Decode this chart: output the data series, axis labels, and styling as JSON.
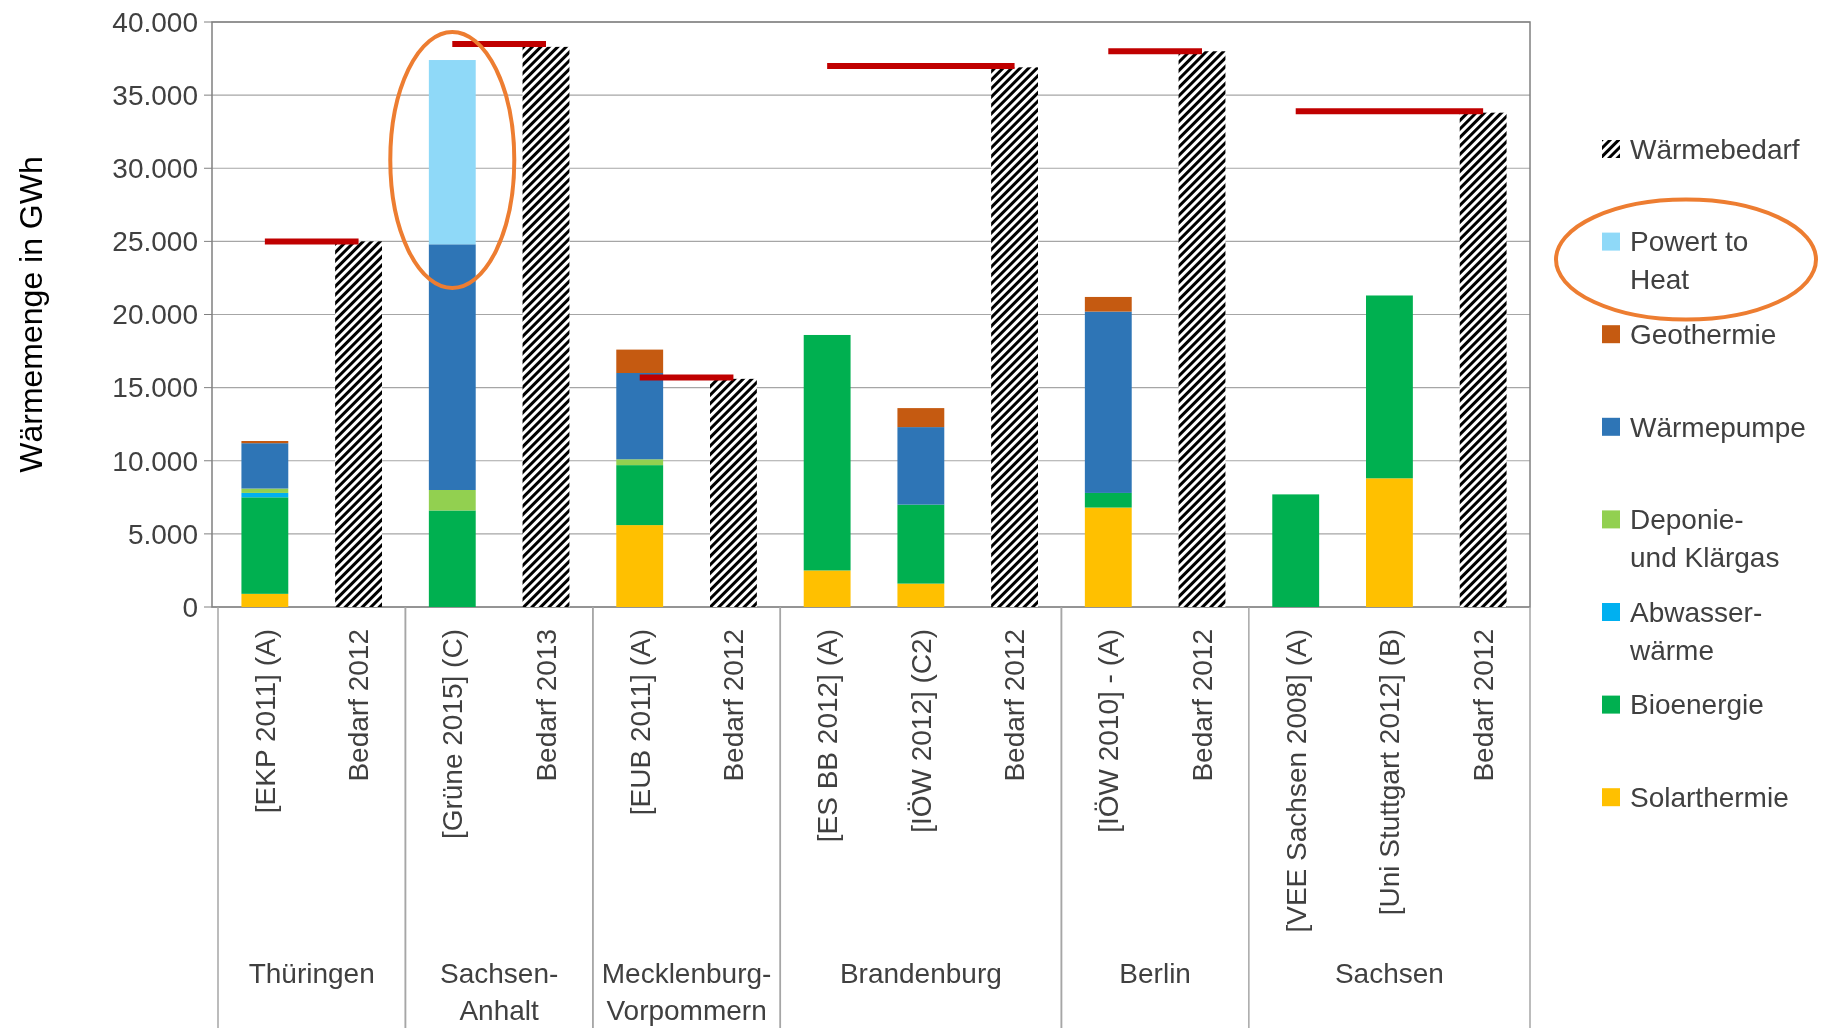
{
  "chart_data": {
    "type": "bar",
    "stacked": true,
    "ylabel": "Wärmemenge in GWh",
    "categories": [
      "[EKP 2011] (A)",
      "Bedarf 2012",
      "[Grüne 2015] (C)",
      "Bedarf 2013",
      "[EUB 2011] (A)",
      "Bedarf 2012",
      "[ES BB 2012] (A)",
      "[IÖW 2012] (C2)",
      "Bedarf 2012",
      "[IÖW 2010] - (A)",
      "Bedarf 2012",
      "[VEE Sachsen 2008] (A)",
      "[Uni Stuttgart 2012] (B)",
      "Bedarf 2012"
    ],
    "series": [
      {
        "name": "Solarthermie",
        "color": "#ffc000",
        "values": [
          900,
          null,
          null,
          null,
          5600,
          null,
          2500,
          1600,
          null,
          6800,
          null,
          null,
          8800,
          null
        ]
      },
      {
        "name": "Bioenergie",
        "color": "#00b050",
        "values": [
          6600,
          null,
          6600,
          null,
          4100,
          null,
          16100,
          5400,
          null,
          1000,
          null,
          7700,
          12500,
          null
        ]
      },
      {
        "name": "Abwasser-\nwärme",
        "color": "#00b0f0",
        "values": [
          300,
          null,
          null,
          null,
          null,
          null,
          null,
          null,
          null,
          null,
          null,
          null,
          null,
          null
        ]
      },
      {
        "name": "Deponie-\nund Klärgas",
        "color": "#92d050",
        "values": [
          300,
          null,
          1400,
          null,
          400,
          null,
          null,
          null,
          null,
          null,
          null,
          null,
          null,
          null
        ]
      },
      {
        "name": "Wärmepumpe",
        "color": "#2e75b6",
        "values": [
          3100,
          null,
          16800,
          null,
          5900,
          null,
          null,
          5300,
          null,
          12400,
          null,
          null,
          null,
          null
        ]
      },
      {
        "name": "Geothermie",
        "color": "#c55a11",
        "values": [
          150,
          null,
          null,
          null,
          1600,
          null,
          null,
          1300,
          null,
          1000,
          null,
          null,
          null,
          null
        ]
      },
      {
        "name": "Powert to\nHeat",
        "color": "#8fd9f8",
        "values": [
          null,
          null,
          12600,
          null,
          null,
          null,
          null,
          null,
          null,
          null,
          null,
          null,
          null,
          null
        ]
      },
      {
        "name": "Wärmebedarf",
        "color": "#000000",
        "values": [
          null,
          25000,
          null,
          38300,
          null,
          15600,
          null,
          null,
          36900,
          null,
          38000,
          null,
          null,
          33800
        ]
      },
      {
        "type": "line",
        "color": "#c00000",
        "values": [
          25000,
          25000,
          null,
          null,
          null,
          null,
          null,
          null,
          null,
          null,
          null,
          null,
          null,
          null
        ]
      },
      {
        "type": "line",
        "color": "#c00000",
        "values": [
          null,
          null,
          38500,
          38500,
          null,
          null,
          null,
          null,
          null,
          null,
          null,
          null,
          null,
          null
        ]
      },
      {
        "type": "line",
        "color": "#c00000",
        "values": [
          null,
          null,
          null,
          null,
          15700,
          15700,
          null,
          null,
          null,
          null,
          null,
          null,
          null,
          null
        ]
      },
      {
        "type": "line",
        "color": "#c00000",
        "values": [
          null,
          null,
          null,
          null,
          null,
          null,
          37000,
          37000,
          37000,
          null,
          null,
          null,
          null,
          null
        ]
      },
      {
        "type": "line",
        "color": "#c00000",
        "values": [
          null,
          null,
          null,
          null,
          null,
          null,
          null,
          null,
          null,
          38000,
          38000,
          null,
          null,
          null
        ]
      },
      {
        "type": "line",
        "color": "#c00000",
        "values": [
          null,
          null,
          null,
          null,
          null,
          null,
          null,
          null,
          null,
          null,
          null,
          33900,
          33900,
          33900
        ]
      }
    ],
    "annotations": [
      "Thüringen",
      "Sachsen-\nAnhalt",
      "Mecklenburg-\nVorpommern",
      "Brandenburg",
      "Berlin",
      "Sachsen"
    ],
    "ylim": [
      0,
      40000
    ],
    "yticks": [
      {
        "value": 0,
        "label": "0"
      },
      {
        "value": 5000,
        "label": "5.000"
      },
      {
        "value": 10000,
        "label": "10.000"
      },
      {
        "value": 15000,
        "label": "15.000"
      },
      {
        "value": 20000,
        "label": "20.000"
      },
      {
        "value": 25000,
        "label": "25.000"
      },
      {
        "value": 30000,
        "label": "30.000"
      },
      {
        "value": 35000,
        "label": "35.000"
      },
      {
        "value": 40000,
        "label": "40.000"
      }
    ],
    "grid": "y",
    "legend": "right",
    "marker": "none"
  }
}
